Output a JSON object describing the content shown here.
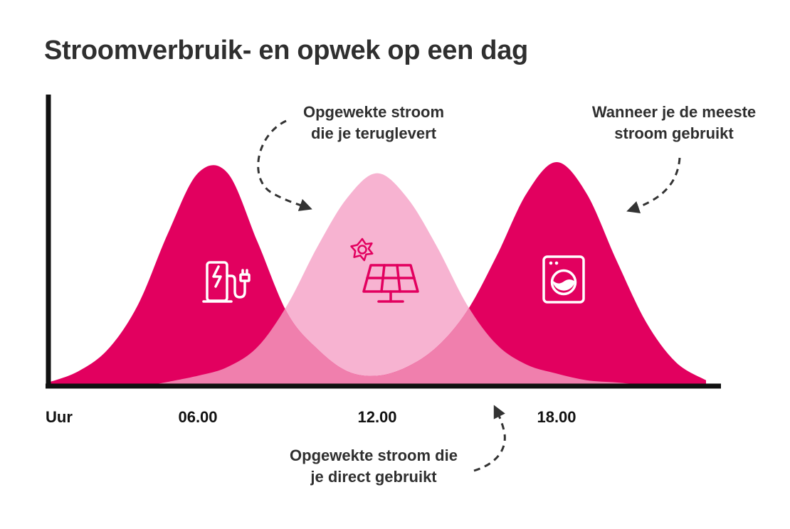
{
  "title": "Stroomverbruik- en opwek op een dag",
  "annotations": {
    "returned": [
      "Opgewekte stroom",
      "die je teruglevert"
    ],
    "peak": [
      "Wanneer je de meeste",
      "stroom gebruikt"
    ],
    "direct": [
      "Opgewekte stroom die",
      "je direct gebruikt"
    ]
  },
  "icons": {
    "morning": "ev-charger-icon",
    "noon": "solar-panel-icon",
    "noon_sun": "sun-icon",
    "evening": "washing-machine-icon"
  },
  "colors": {
    "usage": "#e2005f",
    "generation": "#f7b3d1",
    "overlap": "#f07fad",
    "axis": "#111111",
    "text": "#2f2f2f",
    "arrow": "#333333"
  },
  "chart_data": {
    "type": "area",
    "title": "Stroomverbruik- en opwek op een dag",
    "xlabel": "Uur",
    "ylabel": "",
    "x_ticks": [
      "06.00",
      "12.00",
      "18.00"
    ],
    "xlim": [
      1.0,
      23.5
    ],
    "ylim": [
      0,
      1
    ],
    "grid": false,
    "series": [
      {
        "role": "usage",
        "x": [
          1,
          2,
          3,
          4,
          5,
          6,
          7,
          8,
          9,
          10,
          11,
          12,
          13,
          14,
          15,
          16,
          17,
          18,
          19,
          20,
          21,
          22,
          23
        ],
        "values": [
          0.01,
          0.06,
          0.16,
          0.36,
          0.68,
          0.95,
          0.95,
          0.64,
          0.32,
          0.16,
          0.06,
          0.04,
          0.08,
          0.17,
          0.33,
          0.58,
          0.86,
          1.0,
          0.86,
          0.56,
          0.28,
          0.1,
          0.02
        ]
      },
      {
        "role": "generation",
        "x": [
          4.5,
          6,
          7,
          8,
          9,
          10,
          11,
          12,
          13,
          14,
          15,
          16,
          17,
          18,
          19,
          20,
          20.8
        ],
        "values": [
          0.0,
          0.04,
          0.08,
          0.17,
          0.36,
          0.62,
          0.84,
          0.95,
          0.84,
          0.62,
          0.36,
          0.18,
          0.09,
          0.05,
          0.02,
          0.01,
          0.0
        ]
      }
    ]
  }
}
